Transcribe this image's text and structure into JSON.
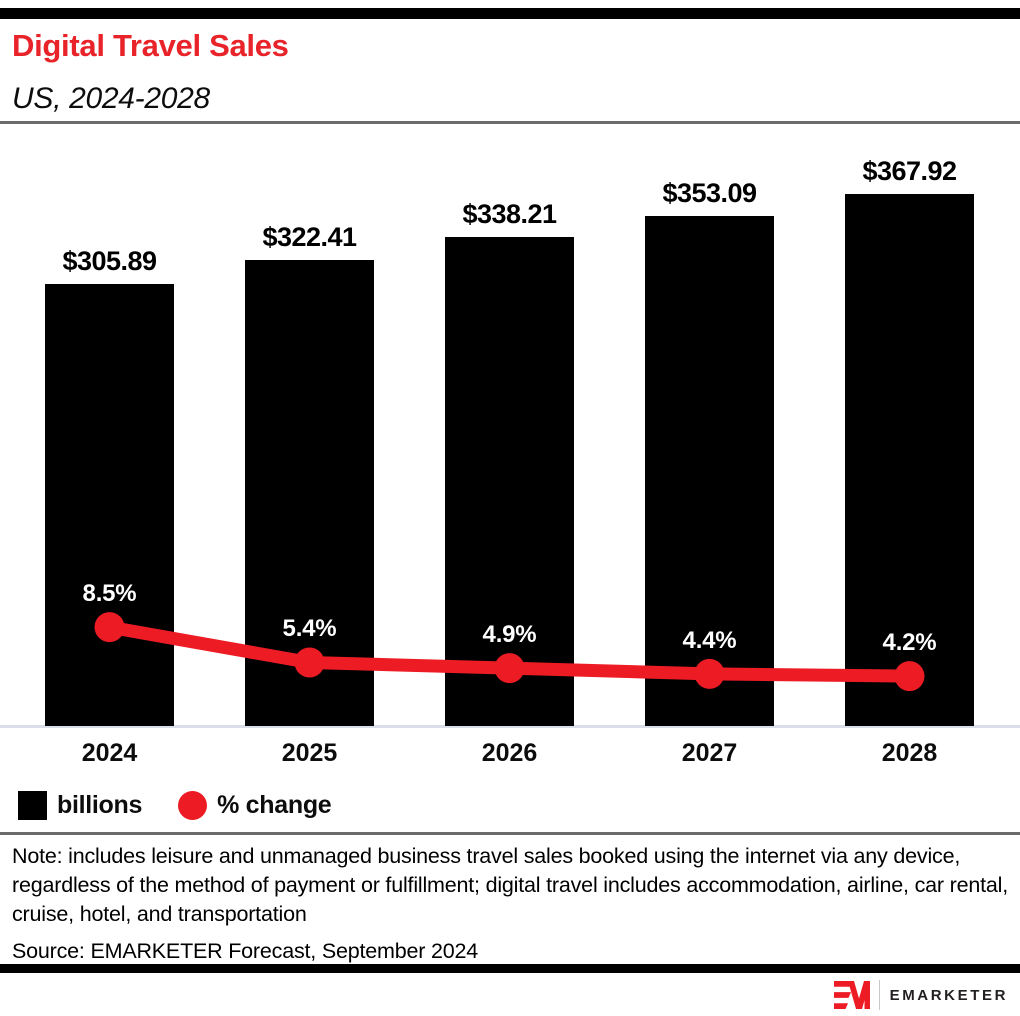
{
  "header": {
    "title": "Digital Travel Sales",
    "subtitle": "US, 2024-2028"
  },
  "chart_data": {
    "type": "bar",
    "categories": [
      "2024",
      "2025",
      "2026",
      "2027",
      "2028"
    ],
    "series": [
      {
        "name": "billions",
        "type": "bar",
        "values": [
          305.89,
          322.41,
          338.21,
          353.09,
          367.92
        ],
        "labels": [
          "$305.89",
          "$322.41",
          "$338.21",
          "$353.09",
          "$367.92"
        ],
        "color": "#000000"
      },
      {
        "name": "% change",
        "type": "line",
        "values": [
          8.5,
          5.4,
          4.9,
          4.4,
          4.2
        ],
        "labels": [
          "8.5%",
          "5.4%",
          "4.9%",
          "4.4%",
          "4.2%"
        ],
        "color": "#ed1b24"
      }
    ],
    "title": "Digital Travel Sales",
    "subtitle": "US, 2024-2028",
    "xlabel": "",
    "ylabel": "",
    "grid": false,
    "legend_position": "bottom-left",
    "legend": [
      {
        "label": "billions",
        "swatch": "square",
        "color": "#000000"
      },
      {
        "label": "% change",
        "swatch": "circle",
        "color": "#ed1b24"
      }
    ],
    "colors": {
      "bar": "#000000",
      "line": "#ed1b24",
      "title_red": "#e82329",
      "axis_line": "#d9dee9",
      "value_label": "#000000",
      "pct_label": "#ffffff"
    }
  },
  "note": "Note: includes leisure and unmanaged business travel sales booked using the internet via any device, regardless of the method of payment or fulfillment; digital travel includes accommodation, airline, car rental, cruise, hotel, and transportation",
  "source": "Source: EMARKETER Forecast, September 2024",
  "footer": {
    "brand": "EMARKETER",
    "monogram": "EM"
  }
}
